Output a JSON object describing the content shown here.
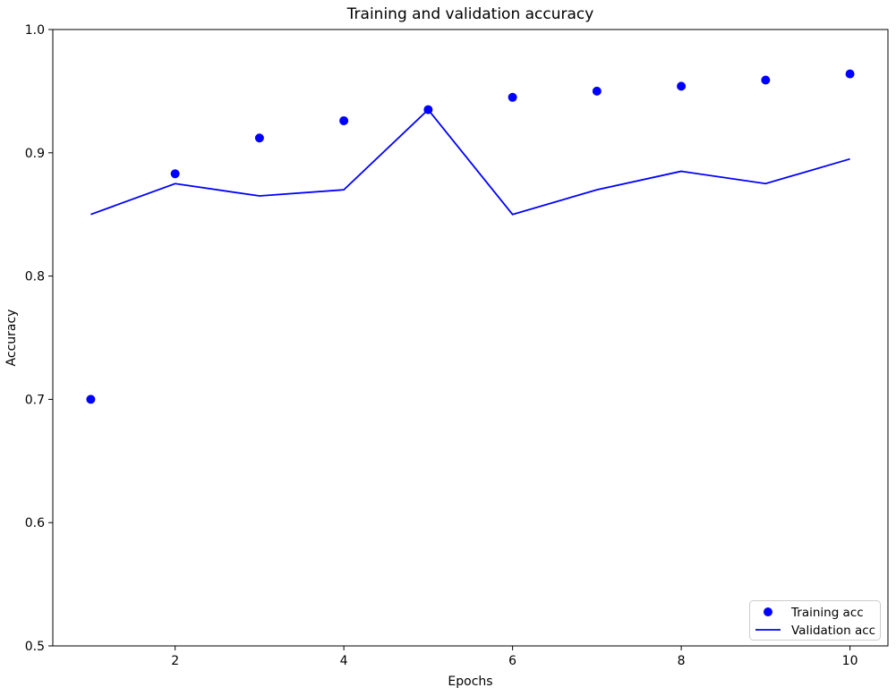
{
  "figure": {
    "background": "#ffffff",
    "accent_color": "#0000ff",
    "frame_color": "#000000",
    "legend_border_color": "#cccccc"
  },
  "chart_data": {
    "type": "line",
    "title": "Training and validation accuracy",
    "xlabel": "Epochs",
    "ylabel": "Accuracy",
    "x": [
      1,
      2,
      3,
      4,
      5,
      6,
      7,
      8,
      9,
      10
    ],
    "series": [
      {
        "name": "Training acc",
        "style": "scatter",
        "marker": "circle",
        "color": "#0000ff",
        "values": [
          0.7,
          0.883,
          0.912,
          0.926,
          0.935,
          0.945,
          0.95,
          0.954,
          0.959,
          0.964
        ]
      },
      {
        "name": "Validation acc",
        "style": "line",
        "color": "#0000ff",
        "values": [
          0.85,
          0.875,
          0.865,
          0.87,
          0.935,
          0.85,
          0.87,
          0.885,
          0.875,
          0.895
        ]
      }
    ],
    "xlim": [
      0.55,
      10.45
    ],
    "ylim": [
      0.5,
      1.0
    ],
    "xticks": [
      2,
      4,
      6,
      8,
      10
    ],
    "xtick_labels": [
      "2",
      "4",
      "6",
      "8",
      "10"
    ],
    "yticks": [
      0.5,
      0.6,
      0.7,
      0.8,
      0.9,
      1.0
    ],
    "ytick_labels": [
      "0.5",
      "0.6",
      "0.7",
      "0.8",
      "0.9",
      "1.0"
    ],
    "grid": false,
    "legend": {
      "position": "lower right",
      "entries": [
        "Training acc",
        "Validation acc"
      ]
    }
  }
}
